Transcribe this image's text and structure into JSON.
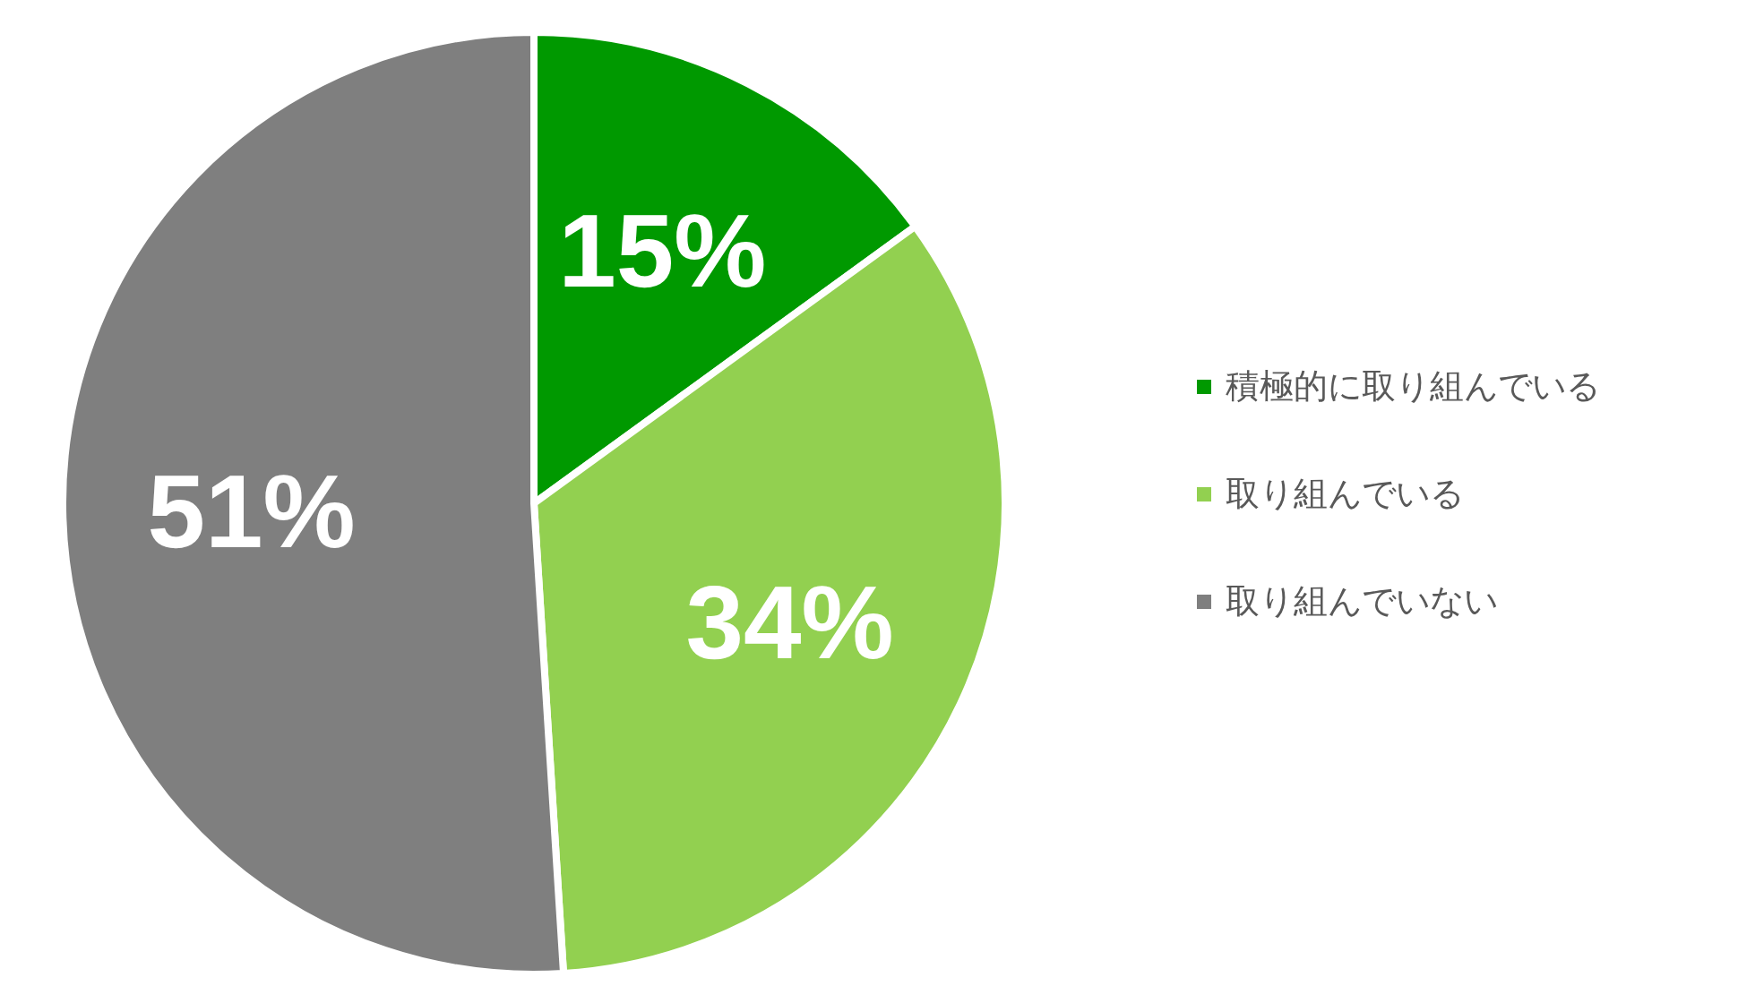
{
  "chart_data": {
    "type": "pie",
    "categories": [
      "積極的に取り組んでいる",
      "取り組んでいる",
      "取り組んでいない"
    ],
    "values": [
      15,
      34,
      51
    ],
    "colors": [
      "#009900",
      "#92d050",
      "#7f7f7f"
    ],
    "value_labels": [
      "15%",
      "34%",
      "51%"
    ],
    "legend": "right"
  }
}
